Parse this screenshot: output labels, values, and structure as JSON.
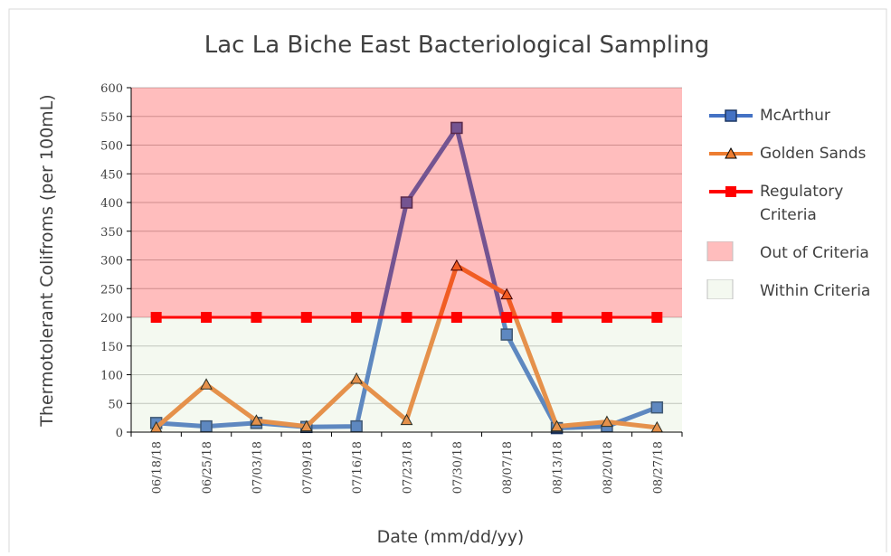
{
  "chart_data": {
    "type": "line",
    "title": "Lac La Biche East Bacteriological Sampling",
    "x_label": "Date (mm/dd/yy)",
    "y_label": "Thermotolerant Colifroms (per 100mL)",
    "categories": [
      "06/18/18",
      "06/25/18",
      "07/03/18",
      "07/09/18",
      "07/16/18",
      "07/23/18",
      "07/30/18",
      "08/07/18",
      "08/13/18",
      "08/20/18",
      "08/27/18"
    ],
    "series": [
      {
        "name": "McArthur",
        "color": "#4472c4",
        "marker": "square",
        "values": [
          16,
          10,
          16,
          9,
          10,
          400,
          530,
          170,
          7,
          10,
          43
        ]
      },
      {
        "name": "Golden Sands",
        "color": "#ed7d31",
        "marker": "triangle",
        "values": [
          8,
          83,
          20,
          10,
          93,
          21,
          290,
          240,
          10,
          18,
          8
        ]
      },
      {
        "name": "Regulatory Criteria",
        "color": "#ff0000",
        "marker": "square",
        "dashed": true,
        "values": [
          200,
          200,
          200,
          200,
          200,
          200,
          200,
          200,
          200,
          200,
          200
        ]
      }
    ],
    "areas": [
      {
        "name": "Out of Criteria",
        "color": "rgba(255,0,0,0.26)",
        "range": [
          200,
          600
        ]
      },
      {
        "name": "Within Criteria",
        "color": "rgba(198,224,180,0.2)",
        "range": [
          0,
          200
        ]
      }
    ],
    "ylim": [
      0,
      600
    ],
    "yticks": [
      0,
      50,
      100,
      150,
      200,
      250,
      300,
      350,
      400,
      450,
      500,
      550,
      600
    ],
    "grid": true,
    "legend": "right"
  }
}
